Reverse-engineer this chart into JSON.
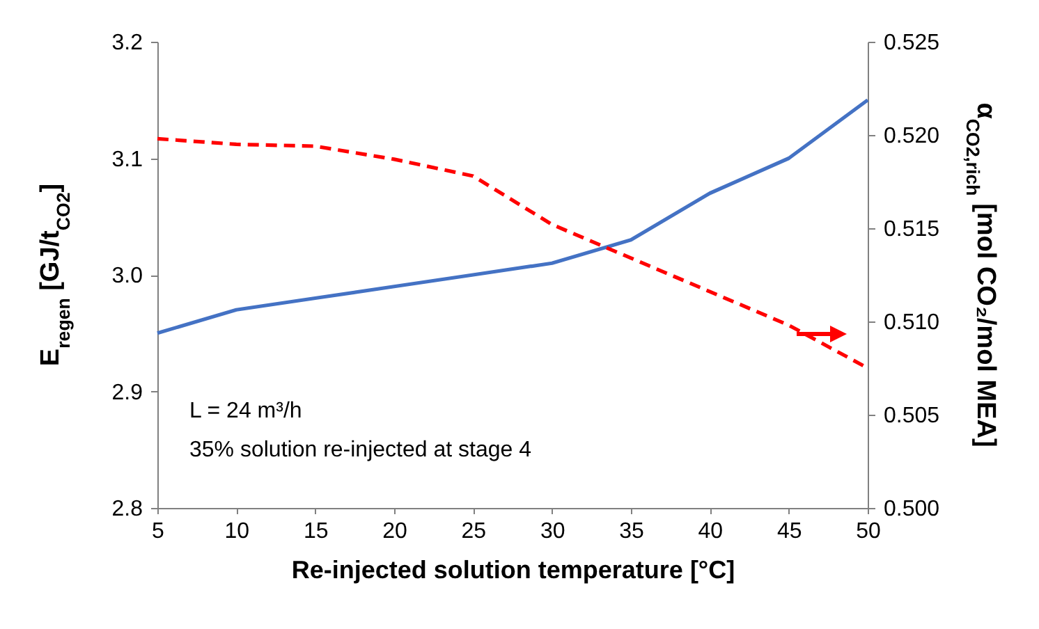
{
  "chart_data": {
    "type": "line",
    "xlabel": "Re-injected solution temperature [°C]",
    "ylabel": "E$_{regen}$ [GJ/t$_{CO2}$]",
    "y2label": "α$_{CO2,rich}$ [mol CO₂/mol MEA]",
    "x": [
      5,
      10,
      15,
      20,
      25,
      30,
      35,
      40,
      45,
      50
    ],
    "series": [
      {
        "color": "#4472c4",
        "line_style": "solid",
        "values": [
          2.95,
          2.97,
          2.98,
          2.99,
          3.0,
          3.01,
          3.03,
          3.07,
          3.1,
          3.15
        ]
      },
      {
        "color": "#ff0000",
        "line_style": "dashed",
        "axis": "y2",
        "values": [
          0.5198,
          0.5195,
          0.5194,
          0.5187,
          0.5178,
          0.5152,
          0.5134,
          0.5116,
          0.5098,
          0.5075
        ]
      }
    ],
    "xlim": [
      5,
      50
    ],
    "xticks": [
      5,
      10,
      15,
      20,
      25,
      30,
      35,
      40,
      45,
      50
    ],
    "ylim": [
      2.8,
      3.2
    ],
    "yticks": [
      {
        "value": 2.8,
        "label": "2.8"
      },
      {
        "value": 2.9,
        "label": "2.9"
      },
      {
        "value": 3.0,
        "label": "3.0"
      },
      {
        "value": 3.1,
        "label": "3.1"
      },
      {
        "value": 3.2,
        "label": "3.2"
      }
    ],
    "y2lim": [
      0.5,
      0.525
    ],
    "y2ticks": [
      {
        "value": 0.5,
        "label": "0.500"
      },
      {
        "value": 0.505,
        "label": "0.505"
      },
      {
        "value": 0.51,
        "label": "0.510"
      },
      {
        "value": 0.515,
        "label": "0.515"
      },
      {
        "value": 0.52,
        "label": "0.520"
      },
      {
        "value": 0.525,
        "label": "0.525"
      }
    ],
    "annotations": [
      "L = 24 m³/h",
      "35% solution re-injected at stage 4"
    ],
    "grid": false
  }
}
